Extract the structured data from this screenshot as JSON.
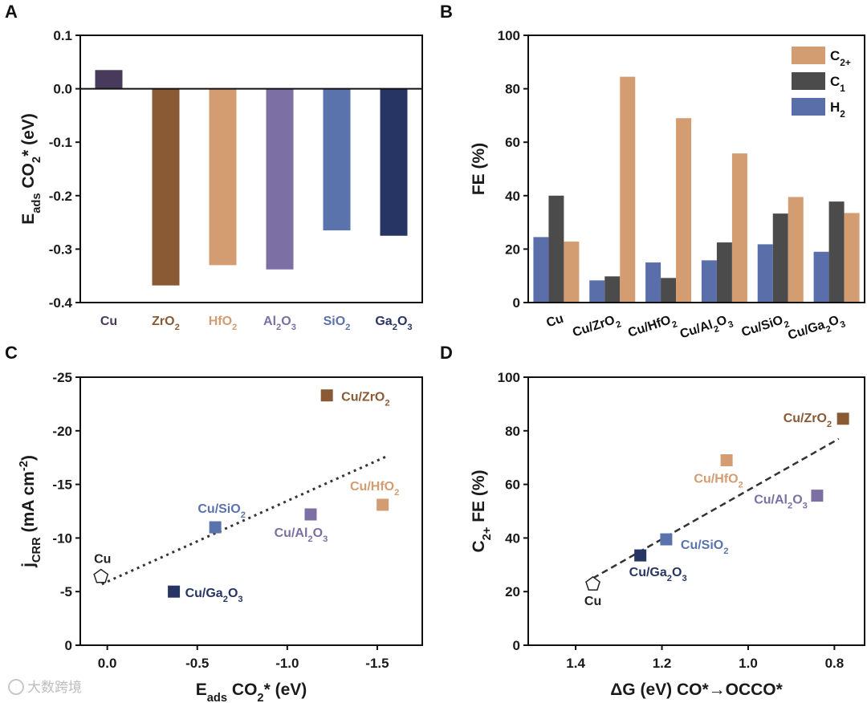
{
  "figure": {
    "watermark": "大数跨境"
  },
  "colors": {
    "Cu": "#473a5a",
    "ZrO2": "#8a5a35",
    "HfO2": "#d39c71",
    "Al2O3": "#7c6fa3",
    "SiO2": "#5a73ad",
    "Ga2O3": "#273565",
    "C2": "#d39c71",
    "C1": "#4b4b4b",
    "H2": "#5a6eaa",
    "trend": "#333333"
  },
  "chart_data": [
    {
      "panel": "A",
      "type": "bar",
      "ylabel": "E_ads CO₂* (eV)",
      "ylabel_main": "E",
      "ylabel_sub": "ads",
      "ylabel_rest": " CO",
      "ylabel_sub2": "2",
      "ylabel_end": "* (eV)",
      "ylim": [
        -0.4,
        0.1
      ],
      "yticks": [
        "0.1",
        "0.0",
        "-0.1",
        "-0.2",
        "-0.3",
        "-0.4"
      ],
      "categories": [
        {
          "base": "Cu",
          "sub": "",
          "post": "",
          "sub2": ""
        },
        {
          "base": "ZrO",
          "sub": "2",
          "post": "",
          "sub2": ""
        },
        {
          "base": "HfO",
          "sub": "2",
          "post": "",
          "sub2": ""
        },
        {
          "base": "Al",
          "sub": "2",
          "post": "O",
          "sub2": "3"
        },
        {
          "base": "SiO",
          "sub": "2",
          "post": "",
          "sub2": ""
        },
        {
          "base": "Ga",
          "sub": "2",
          "post": "O",
          "sub2": "3"
        }
      ],
      "values": [
        0.035,
        -0.368,
        -0.33,
        -0.338,
        -0.265,
        -0.275
      ]
    },
    {
      "panel": "B",
      "type": "bar",
      "ylabel": "FE (%)",
      "ylim": [
        0,
        100
      ],
      "yticks": [
        "0",
        "20",
        "40",
        "60",
        "80",
        "100"
      ],
      "categories": [
        {
          "base": "Cu",
          "sub": "",
          "post": "",
          "sub2": ""
        },
        {
          "base": "Cu/ZrO",
          "sub": "2",
          "post": "",
          "sub2": ""
        },
        {
          "base": "Cu/HfO",
          "sub": "2",
          "post": "",
          "sub2": ""
        },
        {
          "base": "Cu/Al",
          "sub": "2",
          "post": "O",
          "sub2": "3"
        },
        {
          "base": "Cu/SiO",
          "sub": "2",
          "post": "",
          "sub2": ""
        },
        {
          "base": "Cu/Ga",
          "sub": "2",
          "post": "O",
          "sub2": "3"
        }
      ],
      "series": [
        {
          "name": "H₂",
          "legend_base": "H",
          "legend_sub": "2",
          "values": [
            24.5,
            8.3,
            15,
            15.8,
            21.8,
            19
          ]
        },
        {
          "name": "C₁",
          "legend_base": "C",
          "legend_sub": "1",
          "values": [
            40,
            9.8,
            9.2,
            22.5,
            33.3,
            37.8
          ]
        },
        {
          "name": "C₂₊",
          "legend_base": "C",
          "legend_sub": "2+",
          "values": [
            22.8,
            84.5,
            69,
            55.8,
            39.5,
            33.5
          ]
        }
      ],
      "legend_order": [
        2,
        1,
        0
      ],
      "legend_position": "top-right"
    },
    {
      "panel": "C",
      "type": "scatter",
      "xlabel": "E_ads CO₂* (eV)",
      "ylabel": "j_CRR (mA cm⁻²)",
      "xlim": [
        0.15,
        -1.75
      ],
      "ylim": [
        0,
        -25
      ],
      "xticks": [
        0.0,
        -0.5,
        -1.0,
        -1.5
      ],
      "xtick_labels": [
        "0.0",
        "-0.5",
        "-1.0",
        "-1.5"
      ],
      "yticks": [
        0,
        -5,
        -10,
        -15,
        -20,
        -25
      ],
      "ytick_labels": [
        "0",
        "-5",
        "-10",
        "-15",
        "-20",
        "-25"
      ],
      "points": [
        {
          "label": {
            "base": "Cu",
            "sub": "",
            "post": "",
            "sub2": ""
          },
          "x": 0.035,
          "y": -6.4,
          "marker": "pentagon",
          "color_key": "none"
        },
        {
          "label": {
            "base": "Cu/ZrO",
            "sub": "2",
            "post": "",
            "sub2": ""
          },
          "x": -1.22,
          "y": -23.3,
          "marker": "square",
          "color_key": "ZrO2"
        },
        {
          "label": {
            "base": "Cu/HfO",
            "sub": "2",
            "post": "",
            "sub2": ""
          },
          "x": -1.53,
          "y": -13.1,
          "marker": "square",
          "color_key": "HfO2"
        },
        {
          "label": {
            "base": "Cu/Al",
            "sub": "2",
            "post": "O",
            "sub2": "3"
          },
          "x": -1.13,
          "y": -12.2,
          "marker": "square",
          "color_key": "Al2O3"
        },
        {
          "label": {
            "base": "Cu/SiO",
            "sub": "2",
            "post": "",
            "sub2": ""
          },
          "x": -0.6,
          "y": -11.0,
          "marker": "square",
          "color_key": "SiO2"
        },
        {
          "label": {
            "base": "Cu/Ga",
            "sub": "2",
            "post": "O",
            "sub2": "3"
          },
          "x": -0.37,
          "y": -5.0,
          "marker": "square",
          "color_key": "Ga2O3"
        }
      ],
      "trendline": {
        "x": [
          0.03,
          -1.55
        ],
        "y": [
          -5.7,
          -17.6
        ],
        "style": "dotted"
      }
    },
    {
      "panel": "D",
      "type": "scatter",
      "xlabel": "ΔG (eV) CO*→OCCO*",
      "ylabel": "C₂₊ FE (%)",
      "xlim": [
        1.51,
        0.73
      ],
      "ylim": [
        0,
        100
      ],
      "xticks": [
        1.4,
        1.2,
        1.0,
        0.8
      ],
      "xtick_labels": [
        "1.4",
        "1.2",
        "1.0",
        "0.8"
      ],
      "yticks": [
        0,
        20,
        40,
        60,
        80,
        100
      ],
      "ytick_labels": [
        "0",
        "20",
        "40",
        "60",
        "80",
        "100"
      ],
      "points": [
        {
          "label": {
            "base": "Cu",
            "sub": "",
            "post": "",
            "sub2": ""
          },
          "x": 1.36,
          "y": 22.8,
          "marker": "pentagon",
          "color_key": "none"
        },
        {
          "label": {
            "base": "Cu/ZrO",
            "sub": "2",
            "post": "",
            "sub2": ""
          },
          "x": 0.78,
          "y": 84.5,
          "marker": "square",
          "color_key": "ZrO2"
        },
        {
          "label": {
            "base": "Cu/HfO",
            "sub": "2",
            "post": "",
            "sub2": ""
          },
          "x": 1.05,
          "y": 69,
          "marker": "square",
          "color_key": "HfO2"
        },
        {
          "label": {
            "base": "Cu/Al",
            "sub": "2",
            "post": "O",
            "sub2": "3"
          },
          "x": 0.84,
          "y": 55.8,
          "marker": "square",
          "color_key": "Al2O3"
        },
        {
          "label": {
            "base": "Cu/SiO",
            "sub": "2",
            "post": "",
            "sub2": ""
          },
          "x": 1.19,
          "y": 39.5,
          "marker": "square",
          "color_key": "SiO2"
        },
        {
          "label": {
            "base": "Cu/Ga",
            "sub": "2",
            "post": "O",
            "sub2": "3"
          },
          "x": 1.25,
          "y": 33.5,
          "marker": "square",
          "color_key": "Ga2O3"
        }
      ],
      "trendline": {
        "x": [
          1.36,
          0.79
        ],
        "y": [
          25,
          77
        ],
        "style": "dashed"
      }
    }
  ]
}
